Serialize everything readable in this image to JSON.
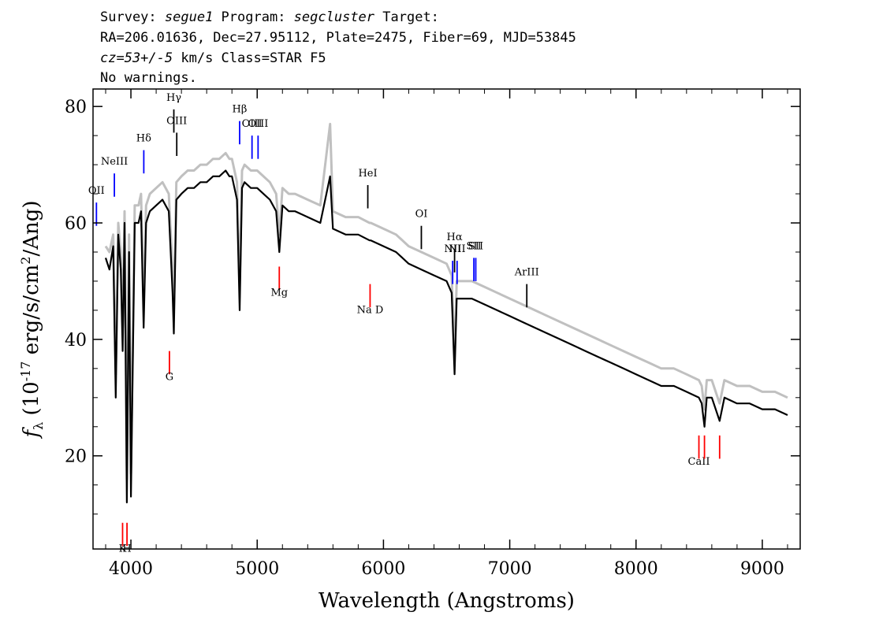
{
  "header": {
    "survey_label": "Survey: ",
    "survey_value": "segue1",
    "program_label": " Program: ",
    "program_value": "segcluster",
    "target_label": " Target:",
    "line2": "RA=206.01636, Dec=27.95112, Plate=2475, Fiber=69, MJD=53845",
    "cz_value": "cz=53+/-5",
    "cz_rest": " km/s Class=STAR F5",
    "line4": "No warnings."
  },
  "chart_data": {
    "type": "line",
    "xlabel": "Wavelength (Angstroms)",
    "ylabel_main": "f",
    "ylabel_sub": "λ",
    "ylabel_rest": " (10",
    "ylabel_exp1": "-17",
    "ylabel_mid": " erg/s/cm",
    "ylabel_exp2": "2",
    "ylabel_end": "/Ang)",
    "xlim": [
      3700,
      9300
    ],
    "ylim": [
      4,
      83
    ],
    "xticks": [
      4000,
      5000,
      6000,
      7000,
      8000,
      9000
    ],
    "yticks": [
      20,
      40,
      60,
      80
    ],
    "grid": false,
    "series": [
      {
        "role": "flux",
        "color": "#000000",
        "x": [
          3800,
          3830,
          3860,
          3880,
          3900,
          3920,
          3935,
          3950,
          3968,
          3985,
          4000,
          4030,
          4060,
          4080,
          4101,
          4120,
          4150,
          4200,
          4250,
          4300,
          4330,
          4340,
          4360,
          4400,
          4450,
          4500,
          4550,
          4600,
          4650,
          4700,
          4750,
          4780,
          4800,
          4820,
          4840,
          4861,
          4880,
          4900,
          4950,
          5000,
          5050,
          5100,
          5150,
          5175,
          5200,
          5250,
          5300,
          5400,
          5500,
          5577,
          5600,
          5700,
          5800,
          5890,
          5900,
          6000,
          6100,
          6200,
          6300,
          6400,
          6500,
          6540,
          6563,
          6580,
          6600,
          6700,
          6800,
          6900,
          7000,
          7100,
          7200,
          7300,
          7400,
          7500,
          7600,
          7700,
          7800,
          7900,
          8000,
          8100,
          8200,
          8300,
          8400,
          8498,
          8520,
          8542,
          8560,
          8600,
          8662,
          8700,
          8800,
          8900,
          9000,
          9100,
          9200
        ],
        "y": [
          54,
          52,
          56,
          30,
          58,
          52,
          38,
          60,
          12,
          55,
          13,
          60,
          60,
          62,
          42,
          60,
          62,
          63,
          64,
          62,
          48,
          41,
          64,
          65,
          66,
          66,
          67,
          67,
          68,
          68,
          69,
          68,
          68,
          66,
          64,
          45,
          66,
          67,
          66,
          66,
          65,
          64,
          62,
          55,
          63,
          62,
          62,
          61,
          60,
          68,
          59,
          58,
          58,
          57,
          57,
          56,
          55,
          53,
          52,
          51,
          50,
          48,
          34,
          47,
          47,
          47,
          46,
          45,
          44,
          43,
          42,
          41,
          40,
          39,
          38,
          37,
          36,
          35,
          34,
          33,
          32,
          32,
          31,
          30,
          29,
          25,
          30,
          30,
          26,
          30,
          29,
          29,
          28,
          28,
          27
        ]
      },
      {
        "role": "error",
        "color": "#c0c0c0",
        "x": [
          3800,
          3830,
          3860,
          3880,
          3900,
          3920,
          3935,
          3950,
          3968,
          3985,
          4000,
          4030,
          4060,
          4080,
          4101,
          4120,
          4150,
          4200,
          4250,
          4300,
          4330,
          4340,
          4360,
          4400,
          4450,
          4500,
          4550,
          4600,
          4650,
          4700,
          4750,
          4780,
          4800,
          4820,
          4840,
          4861,
          4880,
          4900,
          4950,
          5000,
          5050,
          5100,
          5150,
          5175,
          5200,
          5250,
          5300,
          5400,
          5500,
          5577,
          5600,
          5700,
          5800,
          5890,
          5900,
          6000,
          6100,
          6200,
          6300,
          6400,
          6500,
          6540,
          6563,
          6580,
          6600,
          6700,
          6800,
          6900,
          7000,
          7100,
          7200,
          7300,
          7400,
          7500,
          7600,
          7700,
          7800,
          7900,
          8000,
          8100,
          8200,
          8300,
          8400,
          8498,
          8520,
          8542,
          8560,
          8600,
          8662,
          8700,
          8800,
          8900,
          9000,
          9100,
          9200
        ],
        "y": [
          56,
          55,
          58,
          34,
          60,
          55,
          42,
          62,
          16,
          58,
          17,
          63,
          63,
          65,
          46,
          63,
          65,
          66,
          67,
          65,
          52,
          45,
          67,
          68,
          69,
          69,
          70,
          70,
          71,
          71,
          72,
          71,
          71,
          69,
          67,
          49,
          69,
          70,
          69,
          69,
          68,
          67,
          65,
          58,
          66,
          65,
          65,
          64,
          63,
          77,
          62,
          61,
          61,
          60,
          60,
          59,
          58,
          56,
          55,
          54,
          53,
          51,
          37,
          50,
          50,
          50,
          49,
          48,
          47,
          46,
          45,
          44,
          43,
          42,
          41,
          40,
          39,
          38,
          37,
          36,
          35,
          35,
          34,
          33,
          32,
          28,
          33,
          33,
          29,
          33,
          32,
          32,
          31,
          31,
          30
        ]
      }
    ],
    "emission_lines": [
      {
        "label": "OII",
        "wave": 3727,
        "color": "#0000ff",
        "label_y": 65,
        "line_top": 63.5,
        "line_bottom": 59.5
      },
      {
        "label": "NeIII",
        "wave": 3869,
        "color": "#0000ff",
        "label_y": 70,
        "line_top": 68.5,
        "line_bottom": 64.5
      },
      {
        "label": "Hδ",
        "wave": 4102,
        "color": "#0000ff",
        "label_y": 74,
        "line_top": 72.5,
        "line_bottom": 68.5
      },
      {
        "label": "Hγ",
        "wave": 4340,
        "color": "#000000",
        "label_y": 81,
        "line_top": 79.5,
        "line_bottom": 75.5
      },
      {
        "label": "OIII",
        "wave": 4363,
        "color": "#000000",
        "label_y": 77,
        "line_top": 75.5,
        "line_bottom": 71.5
      },
      {
        "label": "Hβ",
        "wave": 4861,
        "color": "#0000ff",
        "label_y": 79,
        "line_top": 77.5,
        "line_bottom": 73.5
      },
      {
        "label": "OIII",
        "wave": 4959,
        "color": "#0000ff",
        "label_y": 76.5,
        "line_top": 75,
        "line_bottom": 71
      },
      {
        "label": "OIII",
        "wave": 5007,
        "color": "#0000ff",
        "label_y": 76.5,
        "line_top": 75,
        "line_bottom": 71
      },
      {
        "label": "HeI",
        "wave": 5876,
        "color": "#000000",
        "label_y": 68,
        "line_top": 66.5,
        "line_bottom": 62.5
      },
      {
        "label": "OI",
        "wave": 6300,
        "color": "#000000",
        "label_y": 61,
        "line_top": 59.5,
        "line_bottom": 55.5
      },
      {
        "label": "NII",
        "wave": 6548,
        "color": "#0000ff",
        "label_y": 55,
        "line_top": 53.5,
        "line_bottom": 49.5
      },
      {
        "label": "Hα",
        "wave": 6563,
        "color": "#000000",
        "label_y": 57,
        "line_top": 55.5,
        "line_bottom": 51.5
      },
      {
        "label": "NII",
        "wave": 6583,
        "color": "#0000ff",
        "label_y": 55,
        "line_top": 53.5,
        "line_bottom": 49.5
      },
      {
        "label": "SII",
        "wave": 6716,
        "color": "#0000ff",
        "label_y": 55.5,
        "line_top": 54,
        "line_bottom": 50
      },
      {
        "label": "SII",
        "wave": 6731,
        "color": "#0000ff",
        "label_y": 55.5,
        "line_top": 54,
        "line_bottom": 50
      },
      {
        "label": "ArIII",
        "wave": 7135,
        "color": "#000000",
        "label_y": 51,
        "line_top": 49.5,
        "line_bottom": 45.5
      }
    ],
    "absorption_lines": [
      {
        "label": "K",
        "wave": 3934,
        "color": "#ff0000",
        "line_top": 8.5,
        "line_bottom": 4.5,
        "label_y": 3.5
      },
      {
        "label": "H",
        "wave": 3969,
        "color": "#ff0000",
        "line_top": 8.5,
        "line_bottom": 4.5,
        "label_y": 3.5
      },
      {
        "label": "G",
        "wave": 4305,
        "color": "#ff0000",
        "line_top": 38,
        "line_bottom": 34,
        "label_y": 33
      },
      {
        "label": "Mg",
        "wave": 5175,
        "color": "#ff0000",
        "line_top": 52.5,
        "line_bottom": 48.5,
        "label_y": 47.5
      },
      {
        "label": "Na D",
        "wave": 5894,
        "color": "#ff0000",
        "line_top": 49.5,
        "line_bottom": 45.5,
        "label_y": 44.5
      },
      {
        "label": "CaII",
        "wave": 8498,
        "color": "#ff0000",
        "line_top": 23.5,
        "line_bottom": 19.5,
        "label_y": 18.5
      },
      {
        "label": "",
        "wave": 8542,
        "color": "#ff0000",
        "line_top": 23.5,
        "line_bottom": 19.5,
        "label_y": 18.5
      },
      {
        "label": "",
        "wave": 8662,
        "color": "#ff0000",
        "line_top": 23.5,
        "line_bottom": 19.5,
        "label_y": 18.5
      }
    ]
  }
}
